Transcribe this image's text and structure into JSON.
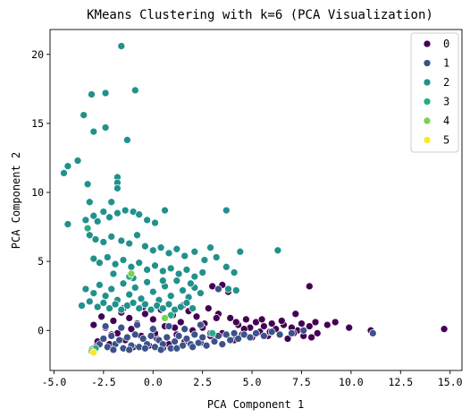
{
  "chart_data": {
    "type": "scatter",
    "title": "KMeans Clustering with k=6 (PCA Visualization)",
    "xlabel": "PCA Component 1",
    "ylabel": "PCA Component 2",
    "xlim": [
      -5.2,
      15.6
    ],
    "ylim": [
      -2.9,
      21.8
    ],
    "xticks": [
      -5.0,
      -2.5,
      0.0,
      2.5,
      5.0,
      7.5,
      10.0,
      12.5,
      15.0
    ],
    "xtick_labels": [
      "-5.0",
      "-2.5",
      "0.0",
      "2.5",
      "5.0",
      "7.5",
      "10.0",
      "12.5",
      "15.0"
    ],
    "yticks": [
      0,
      5,
      10,
      15,
      20
    ],
    "ytick_labels": [
      "0",
      "5",
      "10",
      "15",
      "20"
    ],
    "grid": false,
    "legend_position": "top-right",
    "series": [
      {
        "name": "0",
        "color": "#440154",
        "points": [
          [
            14.7,
            0.1
          ],
          [
            11.0,
            0.0
          ],
          [
            9.9,
            0.2
          ],
          [
            9.2,
            0.6
          ],
          [
            8.8,
            0.4
          ],
          [
            8.3,
            -0.2
          ],
          [
            8.2,
            0.6
          ],
          [
            8.0,
            -0.5
          ],
          [
            7.9,
            3.2
          ],
          [
            7.9,
            0.3
          ],
          [
            7.6,
            -0.4
          ],
          [
            7.5,
            0.5
          ],
          [
            7.3,
            0.0
          ],
          [
            7.2,
            1.2
          ],
          [
            7.0,
            0.2
          ],
          [
            6.8,
            -0.6
          ],
          [
            6.6,
            0.4
          ],
          [
            6.4,
            -0.3
          ],
          [
            6.2,
            0.1
          ],
          [
            6.0,
            0.5
          ],
          [
            5.8,
            -0.4
          ],
          [
            5.6,
            0.3
          ],
          [
            5.4,
            -0.1
          ],
          [
            5.2,
            0.6
          ],
          [
            5.0,
            -0.5
          ],
          [
            4.9,
            0.2
          ],
          [
            4.7,
            0.8
          ],
          [
            4.5,
            -0.3
          ],
          [
            4.3,
            0.4
          ],
          [
            4.1,
            -0.7
          ],
          [
            3.9,
            0.9
          ],
          [
            3.8,
            2.8
          ],
          [
            3.5,
            3.3
          ],
          [
            3.3,
            1.2
          ],
          [
            3.0,
            3.2
          ],
          [
            2.8,
            1.6
          ],
          [
            3.1,
            -0.6
          ],
          [
            2.6,
            0.5
          ],
          [
            2.4,
            -0.9
          ],
          [
            2.2,
            1.0
          ],
          [
            2.0,
            0.0
          ],
          [
            1.8,
            1.4
          ],
          [
            1.6,
            -0.8
          ],
          [
            1.4,
            0.6
          ],
          [
            1.2,
            -0.3
          ],
          [
            1.0,
            1.1
          ],
          [
            0.8,
            -1.0
          ],
          [
            0.6,
            0.3
          ],
          [
            0.4,
            1.5
          ],
          [
            0.2,
            -0.6
          ],
          [
            0.0,
            0.8
          ],
          [
            -0.2,
            -1.1
          ],
          [
            -0.4,
            1.2
          ],
          [
            -0.6,
            -0.4
          ],
          [
            -0.8,
            0.5
          ],
          [
            -1.0,
            -1.2
          ],
          [
            -1.2,
            0.9
          ],
          [
            -1.4,
            -0.7
          ],
          [
            -1.6,
            1.3
          ],
          [
            -1.8,
            -0.2
          ],
          [
            -2.0,
            0.7
          ],
          [
            -2.2,
            -1.0
          ],
          [
            -2.4,
            0.2
          ],
          [
            -2.6,
            1.0
          ],
          [
            -2.8,
            -0.8
          ],
          [
            -3.0,
            0.4
          ],
          [
            -1.5,
            1.6
          ],
          [
            -0.5,
            1.7
          ],
          [
            0.5,
            -1.3
          ],
          [
            1.5,
            1.8
          ],
          [
            2.5,
            0.2
          ],
          [
            3.5,
            -0.2
          ],
          [
            4.2,
            0.6
          ],
          [
            5.5,
            0.8
          ],
          [
            6.5,
            0.7
          ],
          [
            7.1,
            -0.2
          ],
          [
            5.9,
            -0.1
          ],
          [
            4.6,
            0.1
          ],
          [
            3.2,
            0.9
          ],
          [
            2.9,
            -0.4
          ],
          [
            1.1,
            0.2
          ],
          [
            0.1,
            -0.2
          ],
          [
            -1.1,
            0.1
          ],
          [
            -2.1,
            -0.3
          ],
          [
            -2.9,
            -1.2
          ]
        ]
      },
      {
        "name": "1",
        "color": "#3b528b",
        "points": [
          [
            -3.0,
            -1.3
          ],
          [
            -2.7,
            -1.0
          ],
          [
            -2.5,
            -0.6
          ],
          [
            -2.3,
            -1.2
          ],
          [
            -2.1,
            -0.4
          ],
          [
            -1.9,
            -1.0
          ],
          [
            -1.7,
            -0.7
          ],
          [
            -1.5,
            -1.3
          ],
          [
            -1.3,
            -0.5
          ],
          [
            -1.1,
            -1.1
          ],
          [
            -0.9,
            -0.3
          ],
          [
            -0.7,
            -1.2
          ],
          [
            -0.5,
            -0.6
          ],
          [
            -0.3,
            -1.0
          ],
          [
            -0.1,
            -0.4
          ],
          [
            0.1,
            -1.2
          ],
          [
            0.3,
            -0.7
          ],
          [
            0.5,
            -1.0
          ],
          [
            0.7,
            -0.5
          ],
          [
            0.9,
            -1.3
          ],
          [
            1.1,
            -0.8
          ],
          [
            1.3,
            -0.4
          ],
          [
            1.5,
            -1.1
          ],
          [
            1.7,
            -0.6
          ],
          [
            1.9,
            -1.0
          ],
          [
            2.1,
            -0.3
          ],
          [
            2.3,
            -0.9
          ],
          [
            2.5,
            -0.5
          ],
          [
            2.7,
            -1.1
          ],
          [
            2.9,
            -0.2
          ],
          [
            3.1,
            -0.8
          ],
          [
            3.3,
            -0.4
          ],
          [
            3.5,
            -1.0
          ],
          [
            3.7,
            -0.3
          ],
          [
            3.9,
            -0.7
          ],
          [
            4.1,
            -0.2
          ],
          [
            4.3,
            -0.6
          ],
          [
            4.6,
            -0.3
          ],
          [
            4.9,
            -0.5
          ],
          [
            5.2,
            -0.2
          ],
          [
            5.6,
            -0.4
          ],
          [
            6.0,
            -0.1
          ],
          [
            6.4,
            -0.3
          ],
          [
            7.0,
            -0.2
          ],
          [
            7.6,
            0.0
          ],
          [
            11.1,
            -0.2
          ],
          [
            -2.4,
            0.3
          ],
          [
            -1.6,
            0.2
          ],
          [
            -0.8,
            0.4
          ],
          [
            0.0,
            0.1
          ],
          [
            0.8,
            0.3
          ],
          [
            1.6,
            0.1
          ],
          [
            2.4,
            0.4
          ],
          [
            -3.1,
            -1.4
          ],
          [
            -2.0,
            -1.4
          ],
          [
            -1.2,
            -1.4
          ],
          [
            -0.4,
            -1.3
          ],
          [
            0.4,
            -1.4
          ],
          [
            1.2,
            -1.3
          ],
          [
            2.0,
            -1.2
          ],
          [
            3.3,
            3.0
          ]
        ]
      },
      {
        "name": "2",
        "color": "#21918c",
        "points": [
          [
            -1.6,
            20.6
          ],
          [
            -3.1,
            17.1
          ],
          [
            -2.4,
            17.2
          ],
          [
            -0.9,
            17.4
          ],
          [
            -3.5,
            15.6
          ],
          [
            -3.0,
            14.4
          ],
          [
            -2.4,
            14.7
          ],
          [
            -1.3,
            13.8
          ],
          [
            -3.8,
            12.3
          ],
          [
            -4.3,
            11.9
          ],
          [
            -4.5,
            11.4
          ],
          [
            -3.3,
            10.6
          ],
          [
            -1.8,
            11.1
          ],
          [
            -1.8,
            10.7
          ],
          [
            -1.8,
            10.3
          ],
          [
            -3.2,
            9.3
          ],
          [
            -2.1,
            9.3
          ],
          [
            -4.3,
            7.7
          ],
          [
            -3.4,
            8.0
          ],
          [
            -3.0,
            8.3
          ],
          [
            -2.8,
            7.9
          ],
          [
            -2.5,
            8.6
          ],
          [
            -2.2,
            8.2
          ],
          [
            -1.8,
            8.5
          ],
          [
            -1.4,
            8.7
          ],
          [
            -1.0,
            8.6
          ],
          [
            -0.7,
            8.4
          ],
          [
            -0.3,
            8.0
          ],
          [
            0.1,
            7.8
          ],
          [
            0.6,
            8.7
          ],
          [
            3.7,
            8.7
          ],
          [
            -3.2,
            6.9
          ],
          [
            -2.9,
            6.6
          ],
          [
            -2.5,
            6.4
          ],
          [
            -2.1,
            6.8
          ],
          [
            -1.6,
            6.5
          ],
          [
            -1.2,
            6.3
          ],
          [
            -0.8,
            6.9
          ],
          [
            -0.4,
            6.1
          ],
          [
            0.0,
            5.8
          ],
          [
            0.4,
            6.0
          ],
          [
            0.8,
            5.6
          ],
          [
            1.2,
            5.9
          ],
          [
            1.6,
            5.4
          ],
          [
            2.1,
            5.7
          ],
          [
            2.6,
            5.1
          ],
          [
            2.9,
            6.0
          ],
          [
            3.2,
            5.3
          ],
          [
            3.7,
            4.6
          ],
          [
            4.1,
            4.2
          ],
          [
            4.4,
            5.7
          ],
          [
            6.3,
            5.8
          ],
          [
            -3.0,
            5.2
          ],
          [
            -2.7,
            4.9
          ],
          [
            -2.3,
            5.3
          ],
          [
            -1.9,
            4.8
          ],
          [
            -1.5,
            5.1
          ],
          [
            -1.1,
            4.6
          ],
          [
            -0.7,
            4.9
          ],
          [
            -0.3,
            4.4
          ],
          [
            0.1,
            4.7
          ],
          [
            0.5,
            4.3
          ],
          [
            0.9,
            4.5
          ],
          [
            1.3,
            4.1
          ],
          [
            1.7,
            4.4
          ],
          [
            2.1,
            3.9
          ],
          [
            2.5,
            4.2
          ],
          [
            -3.4,
            3.0
          ],
          [
            -3.0,
            2.7
          ],
          [
            -2.7,
            3.3
          ],
          [
            -2.4,
            2.5
          ],
          [
            -2.1,
            3.0
          ],
          [
            -1.8,
            2.2
          ],
          [
            -1.5,
            3.4
          ],
          [
            -1.2,
            2.6
          ],
          [
            -0.9,
            3.1
          ],
          [
            -0.6,
            2.3
          ],
          [
            -0.3,
            3.5
          ],
          [
            0.0,
            2.8
          ],
          [
            0.3,
            2.2
          ],
          [
            0.6,
            3.2
          ],
          [
            0.9,
            2.5
          ],
          [
            1.2,
            3.6
          ],
          [
            1.5,
            2.9
          ],
          [
            1.8,
            2.4
          ],
          [
            2.1,
            3.1
          ],
          [
            2.4,
            2.7
          ],
          [
            -3.6,
            1.8
          ],
          [
            -3.2,
            2.1
          ],
          [
            -2.8,
            1.7
          ],
          [
            -2.5,
            2.0
          ],
          [
            -2.2,
            1.6
          ],
          [
            -1.9,
            1.9
          ],
          [
            -1.6,
            1.5
          ],
          [
            -1.3,
            1.8
          ],
          [
            -1.0,
            2.0
          ],
          [
            -0.7,
            1.6
          ],
          [
            -0.4,
            1.9
          ],
          [
            -0.1,
            1.5
          ],
          [
            0.2,
            1.8
          ],
          [
            0.5,
            1.6
          ],
          [
            0.8,
            1.9
          ],
          [
            1.1,
            1.5
          ],
          [
            1.4,
            1.7
          ],
          [
            1.7,
            2.0
          ],
          [
            2.0,
            1.6
          ],
          [
            -1.0,
            3.8
          ],
          [
            0.5,
            3.6
          ],
          [
            1.9,
            3.4
          ],
          [
            -2.0,
            4.1
          ],
          [
            3.8,
            3.0
          ],
          [
            4.2,
            2.9
          ]
        ]
      },
      {
        "name": "3",
        "color": "#27ad81",
        "points": [
          [
            -3.3,
            7.4
          ],
          [
            0.9,
            1.1
          ],
          [
            3.0,
            -0.2
          ],
          [
            -2.9,
            -1.3
          ],
          [
            -1.2,
            3.9
          ]
        ]
      },
      {
        "name": "4",
        "color": "#7ad151",
        "points": [
          [
            -1.1,
            4.1
          ],
          [
            -3.1,
            -1.5
          ],
          [
            0.6,
            0.9
          ]
        ]
      },
      {
        "name": "5",
        "color": "#fde725",
        "points": [
          [
            -3.0,
            -1.6
          ]
        ]
      }
    ]
  }
}
